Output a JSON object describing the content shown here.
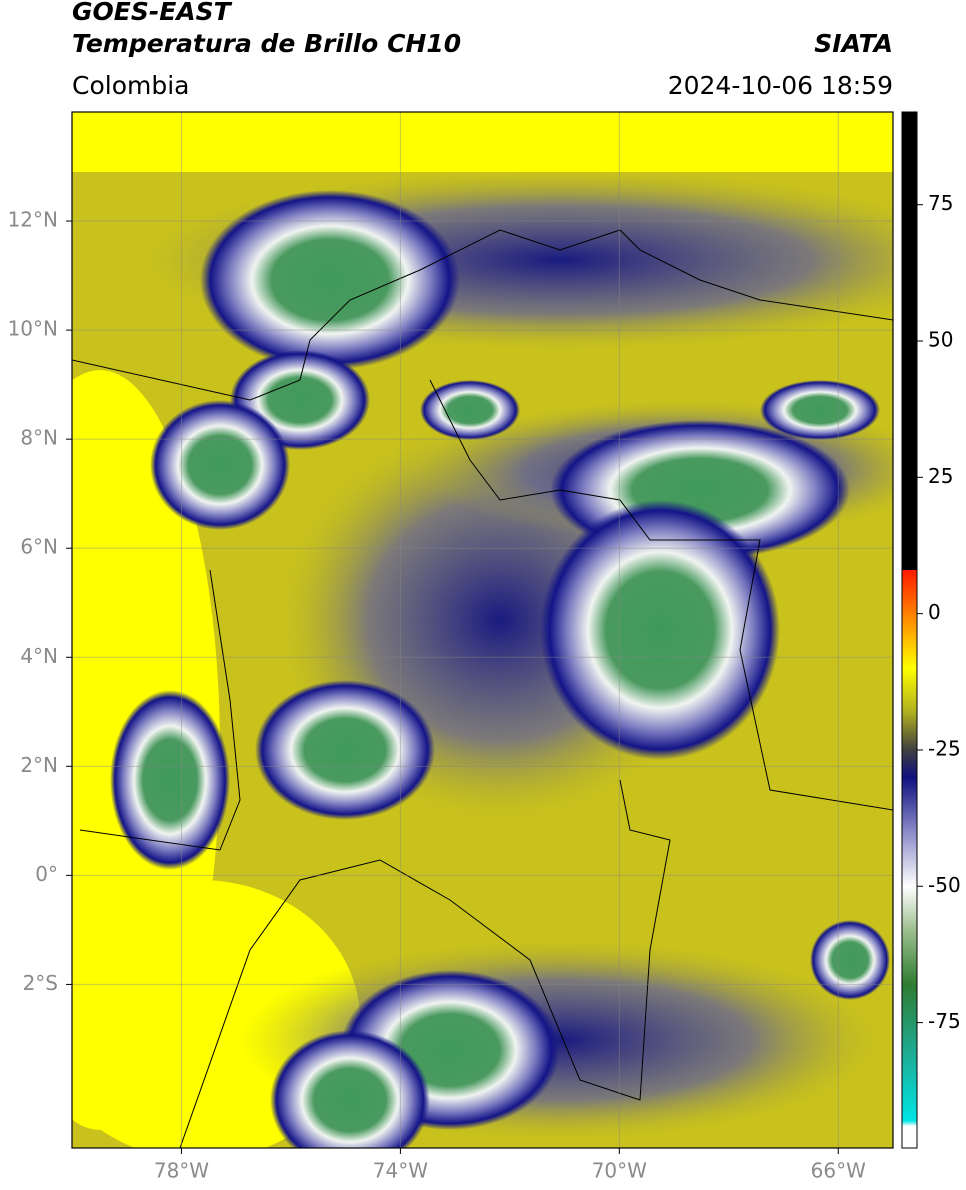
{
  "header": {
    "satellite": "GOES-EAST",
    "product": "Temperatura de Brillo CH10",
    "source": "SIATA",
    "region": "Colombia",
    "datetime": "2024-10-06 18:59"
  },
  "map": {
    "xlim": [
      -80,
      -65
    ],
    "ylim": [
      -5,
      14
    ],
    "xticks": [
      {
        "value": -78,
        "label": "78°W"
      },
      {
        "value": -74,
        "label": "74°W"
      },
      {
        "value": -70,
        "label": "70°W"
      },
      {
        "value": -66,
        "label": "66°W"
      }
    ],
    "yticks": [
      {
        "value": 12,
        "label": "12°N"
      },
      {
        "value": 10,
        "label": "10°N"
      },
      {
        "value": 8,
        "label": "8°N"
      },
      {
        "value": 6,
        "label": "6°N"
      },
      {
        "value": 4,
        "label": "4°N"
      },
      {
        "value": 2,
        "label": "2°N"
      },
      {
        "value": 0,
        "label": "0°"
      },
      {
        "value": -2,
        "label": "2°S"
      }
    ],
    "grid": true
  },
  "colorbar": {
    "clim": [
      -98,
      92
    ],
    "ticks": [
      75,
      50,
      25,
      0,
      -25,
      -50,
      -75
    ],
    "stops": [
      {
        "value": -98,
        "color": "#ffffff"
      },
      {
        "value": -94,
        "color": "#ffffff"
      },
      {
        "value": -93,
        "color": "#00e5e5"
      },
      {
        "value": -80,
        "color": "#1fa98f"
      },
      {
        "value": -68,
        "color": "#2e7d32"
      },
      {
        "value": -58,
        "color": "#9dbf8f"
      },
      {
        "value": -50,
        "color": "#ffffff"
      },
      {
        "value": -40,
        "color": "#8a8ac8"
      },
      {
        "value": -30,
        "color": "#101080"
      },
      {
        "value": -25,
        "color": "#404040"
      },
      {
        "value": -18,
        "color": "#b0b020"
      },
      {
        "value": -10,
        "color": "#ffff00"
      },
      {
        "value": -2,
        "color": "#ff9900"
      },
      {
        "value": 8,
        "color": "#ff1a00"
      },
      {
        "value": 8,
        "color": "#000000"
      },
      {
        "value": 92,
        "color": "#000000"
      }
    ]
  }
}
